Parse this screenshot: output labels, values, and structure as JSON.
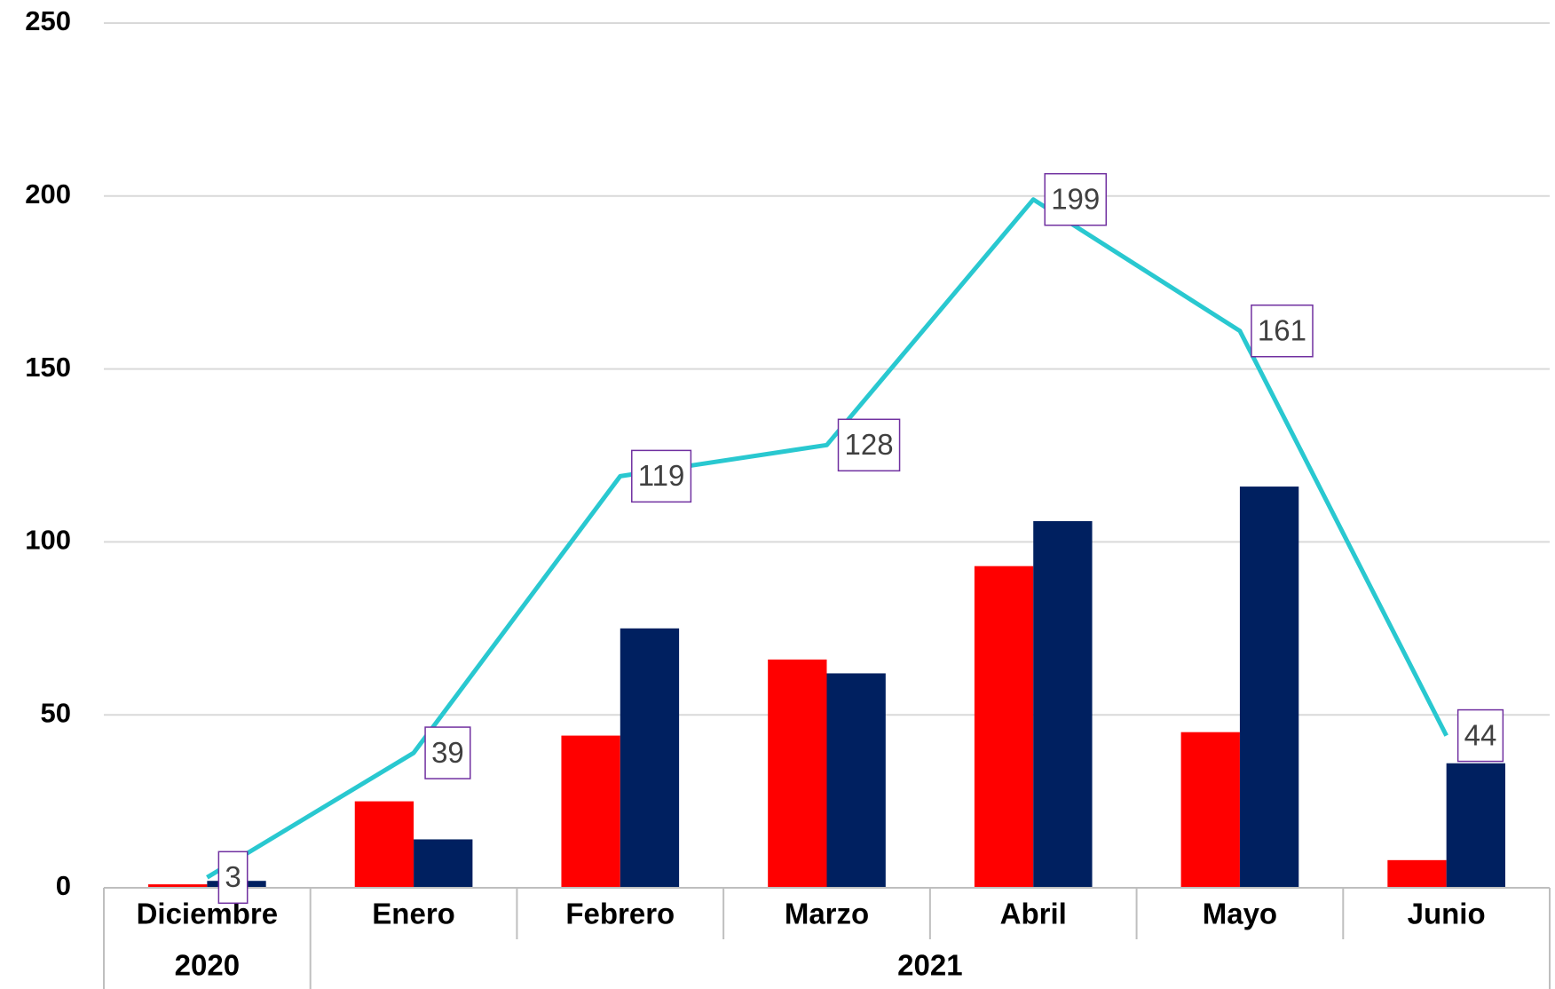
{
  "chart_data": {
    "type": "bar",
    "categories": [
      "Diciembre",
      "Enero",
      "Febrero",
      "Marzo",
      "Abril",
      "Mayo",
      "Junio"
    ],
    "category_groups": [
      "2020",
      "2021",
      "2021",
      "2021",
      "2021",
      "2021",
      "2021"
    ],
    "series": [
      {
        "color": "#ff0000",
        "values": [
          1,
          25,
          44,
          66,
          93,
          45,
          8
        ]
      },
      {
        "color": "#002060",
        "values": [
          2,
          14,
          75,
          62,
          106,
          116,
          36
        ]
      },
      {
        "type": "line",
        "color": "#29c8d0",
        "label_border": "#7030a0",
        "values": [
          3,
          39,
          119,
          128,
          199,
          161,
          44
        ]
      }
    ],
    "ylim": [
      0,
      250
    ],
    "yticks": [
      0,
      50,
      100,
      150,
      200,
      250
    ],
    "grid": true
  }
}
